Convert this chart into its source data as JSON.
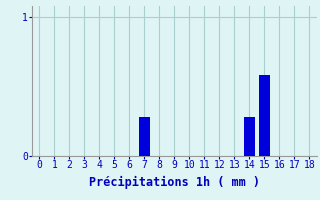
{
  "hours": [
    0,
    1,
    2,
    3,
    4,
    5,
    6,
    7,
    8,
    9,
    10,
    11,
    12,
    13,
    14,
    15,
    16,
    17,
    18
  ],
  "values": [
    0,
    0,
    0,
    0,
    0,
    0,
    0,
    0.28,
    0,
    0,
    0,
    0,
    0,
    0,
    0.28,
    0.58,
    0,
    0,
    0
  ],
  "bar_color": "#0000dd",
  "background_color": "#dff4f4",
  "grid_color": "#aacfcf",
  "label_color": "#0000bb",
  "xlabel": "Précipitations 1h ( mm )",
  "ytick_labels": [
    "0",
    "1"
  ],
  "ytick_values": [
    0,
    1
  ],
  "ylim": [
    0,
    1.08
  ],
  "xlim": [
    -0.5,
    18.5
  ],
  "xlabel_fontsize": 8.5,
  "tick_fontsize": 7,
  "bar_width": 0.7
}
